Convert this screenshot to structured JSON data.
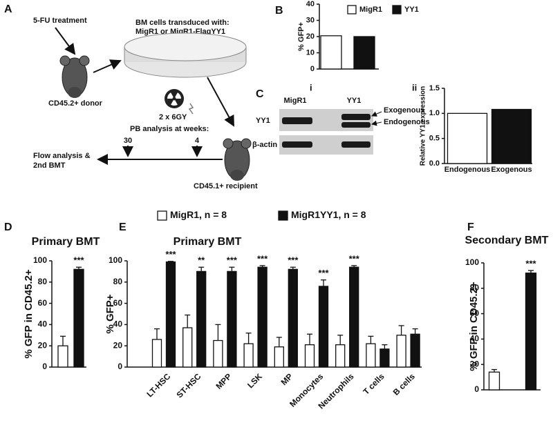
{
  "panels": {
    "A": "A",
    "B": "B",
    "C": "C",
    "i": "i",
    "ii": "ii",
    "D": "D",
    "E": "E",
    "F": "F"
  },
  "diagram": {
    "treatment": "5-FU treatment",
    "bm_cells": "BM cells transduced with:",
    "vectors": "MigR1 or MigR1-FlagYY1",
    "donor": "CD45.2+ donor",
    "irradiation": "2 x 6GY",
    "pb_analysis": "PB analysis at weeks:",
    "week_30": "30",
    "week_4": "4",
    "flow_1": "Flow analysis &",
    "flow_2": "2nd BMT",
    "recipient": "CD45.1+ recipient"
  },
  "blot": {
    "lanes": [
      "MigR1",
      "YY1"
    ],
    "rows": [
      "YY1",
      "β-actin"
    ],
    "bands": [
      "Exogenous",
      "Endogenous"
    ]
  },
  "chart_data": [
    {
      "type": "bar",
      "y_label": "% GFP+",
      "categories": [
        null
      ],
      "series": [
        {
          "name": "MigR1",
          "color": "#ffffff",
          "values": [
            20.5
          ]
        },
        {
          "name": "YY1",
          "color": "#111111",
          "values": [
            20
          ]
        }
      ],
      "ylim": [
        0,
        40
      ],
      "yticks": [
        0,
        10,
        20,
        30,
        40
      ]
    },
    {
      "type": "bar",
      "y_label": "Relative YY1 expression",
      "categories": [
        "Endogenous",
        "Exogenous"
      ],
      "values": [
        1.0,
        1.08
      ],
      "colors": [
        "#ffffff",
        "#111111"
      ],
      "ylim": [
        0,
        1.5
      ],
      "yticks": [
        {
          "value": 0,
          "label": "0.0"
        },
        {
          "value": 0.5,
          "label": "0.5"
        },
        {
          "value": 1,
          "label": "1.0"
        },
        {
          "value": 1.5,
          "label": "1.5"
        }
      ]
    },
    {
      "type": "bar",
      "title": "Primary BMT",
      "y_label": "% GFP in CD45.2+",
      "categories": [
        null
      ],
      "series": [
        {
          "color": "#ffffff",
          "values": [
            20
          ],
          "errors": [
            9
          ]
        },
        {
          "color": "#111111",
          "values": [
            92
          ],
          "errors": [
            2
          ]
        }
      ],
      "significance": [
        "***"
      ],
      "ylim": [
        0,
        100
      ],
      "yticks": [
        0,
        20,
        40,
        60,
        80,
        100
      ]
    },
    {
      "type": "bar",
      "title": "Primary BMT",
      "y_label": "% GFP+",
      "categories": [
        "LT-HSC",
        "ST-HSC",
        "MPP",
        "LSK",
        "MP",
        "Monocytes",
        "Neutrophils",
        "T cells",
        "B cells"
      ],
      "series": [
        {
          "name": "MigR1, n = 8",
          "color": "#ffffff",
          "values": [
            26,
            37,
            25,
            22,
            19,
            21,
            21,
            22,
            30
          ],
          "errors": [
            10,
            12,
            15,
            10,
            9,
            10,
            9,
            7,
            9
          ]
        },
        {
          "name": "MigR1YY1, n = 8",
          "color": "#111111",
          "values": [
            99,
            90,
            90,
            94,
            92,
            76,
            94,
            17,
            31
          ],
          "errors": [
            0.5,
            4,
            4,
            1.5,
            2,
            6,
            1.5,
            4,
            5
          ]
        }
      ],
      "significance": [
        "***",
        "**",
        "***",
        "***",
        "***",
        "***",
        "***",
        null,
        null
      ],
      "ylim": [
        0,
        100
      ],
      "yticks": [
        0,
        20,
        40,
        60,
        80,
        100
      ]
    },
    {
      "type": "bar",
      "title": "Secondary BMT",
      "y_label": "% GFP in CD45.2+",
      "categories": [
        null
      ],
      "series": [
        {
          "color": "#ffffff",
          "values": [
            14
          ],
          "errors": [
            2
          ]
        },
        {
          "color": "#111111",
          "values": [
            92
          ],
          "errors": [
            2
          ]
        }
      ],
      "significance": [
        "***"
      ],
      "ylim": [
        0,
        100
      ],
      "yticks": [
        0,
        20,
        40,
        60,
        80,
        100
      ]
    }
  ]
}
